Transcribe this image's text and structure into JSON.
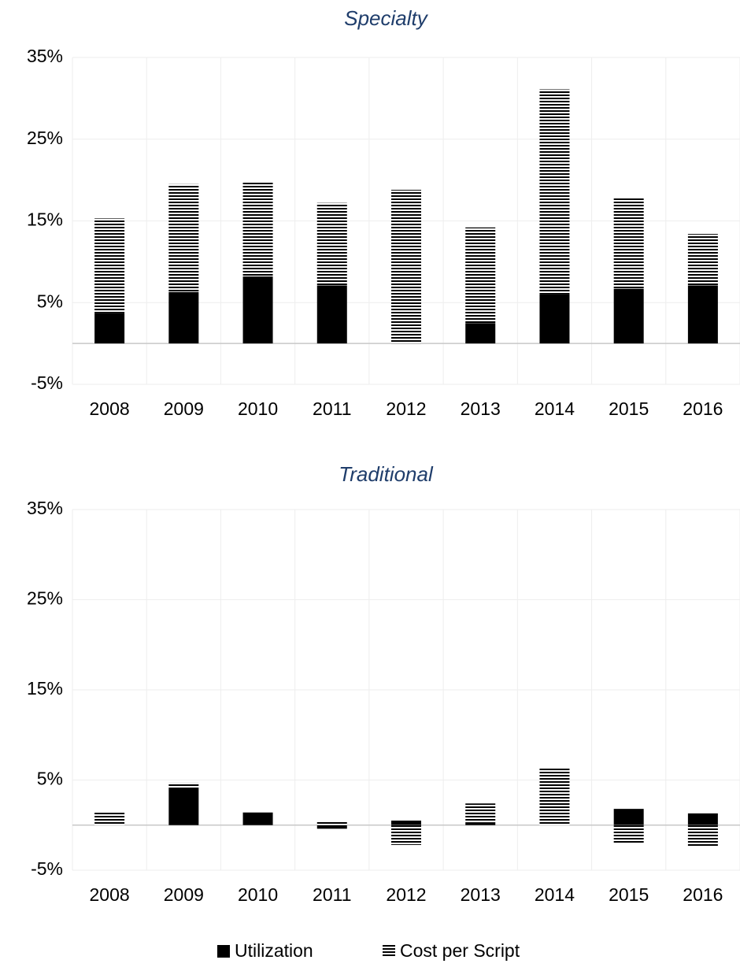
{
  "chart_data": [
    {
      "type": "bar",
      "stacked": true,
      "title": "Specialty",
      "categories": [
        "2008",
        "2009",
        "2010",
        "2011",
        "2012",
        "2013",
        "2014",
        "2015",
        "2016"
      ],
      "series": [
        {
          "name": "Utilization",
          "color": "#000000",
          "values": [
            3.7,
            6.3,
            8.2,
            7.1,
            0,
            2.5,
            6.0,
            6.7,
            7.1
          ]
        },
        {
          "name": "Cost per Script",
          "color": "hatch",
          "values": [
            11.6,
            13.2,
            11.6,
            10.1,
            18.8,
            11.7,
            25.1,
            11.1,
            6.3
          ]
        }
      ],
      "ylim": [
        -5,
        35
      ],
      "yticks": [
        {
          "value": -5,
          "label": "-5%"
        },
        {
          "value": 5,
          "label": "5%"
        },
        {
          "value": 15,
          "label": "15%"
        },
        {
          "value": 25,
          "label": "25%"
        },
        {
          "value": 35,
          "label": "35%"
        }
      ],
      "grid": true
    },
    {
      "type": "bar",
      "stacked": true,
      "title": "Traditional",
      "categories": [
        "2008",
        "2009",
        "2010",
        "2011",
        "2012",
        "2013",
        "2014",
        "2015",
        "2016"
      ],
      "series": [
        {
          "name": "Utilization",
          "color": "#000000",
          "values": [
            0,
            4.1,
            1.4,
            -0.4,
            0.5,
            0.3,
            0,
            1.8,
            1.3
          ]
        },
        {
          "name": "Cost per Script",
          "color": "hatch",
          "values": [
            1.4,
            0.6,
            0,
            0.4,
            -2.2,
            2.1,
            6.4,
            -2.1,
            -2.3
          ]
        }
      ],
      "ylim": [
        -5,
        35
      ],
      "yticks": [
        {
          "value": -5,
          "label": "-5%"
        },
        {
          "value": 5,
          "label": "5%"
        },
        {
          "value": 15,
          "label": "15%"
        },
        {
          "value": 25,
          "label": "25%"
        },
        {
          "value": 35,
          "label": "35%"
        }
      ],
      "grid": true,
      "legend": "bottom"
    }
  ]
}
